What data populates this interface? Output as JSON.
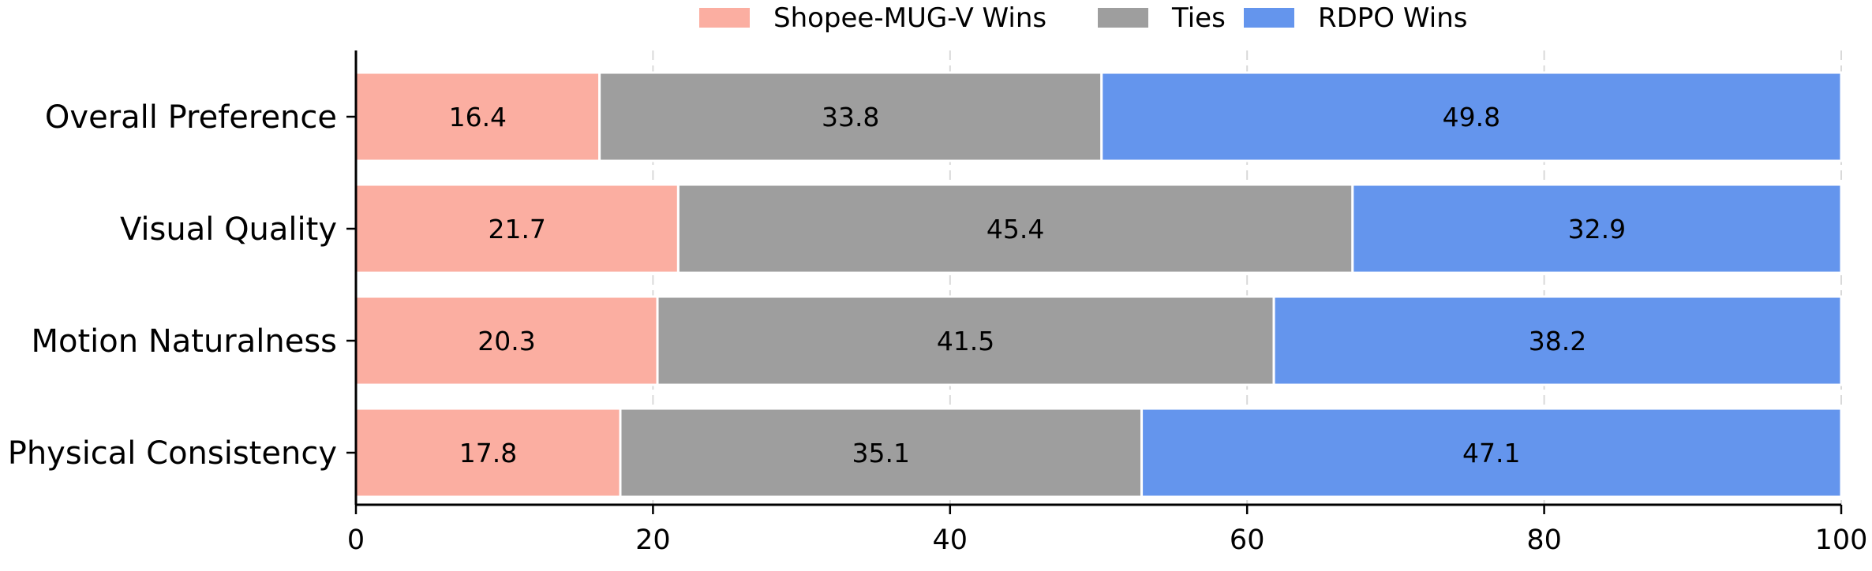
{
  "chart_data": {
    "type": "bar",
    "orientation": "horizontal",
    "stacked": true,
    "categories": [
      "Overall Preference",
      "Visual Quality",
      "Motion Naturalness",
      "Physical Consistency"
    ],
    "series": [
      {
        "name": "Shopee-MUG-V Wins",
        "color": "#FBAEA1",
        "values": [
          16.4,
          21.7,
          20.3,
          17.8
        ]
      },
      {
        "name": "Ties",
        "color": "#9E9E9E",
        "values": [
          33.8,
          45.4,
          41.5,
          35.1
        ]
      },
      {
        "name": "RDPO Wins",
        "color": "#6495ED",
        "values": [
          49.8,
          32.9,
          38.2,
          47.1
        ]
      }
    ],
    "xlim": [
      0,
      100
    ],
    "xticks": [
      0,
      20,
      40,
      60,
      80,
      100
    ],
    "grid": "x-dashed",
    "legend_position": "top-center",
    "data_labels": true,
    "title": "",
    "xlabel": "",
    "ylabel": ""
  }
}
